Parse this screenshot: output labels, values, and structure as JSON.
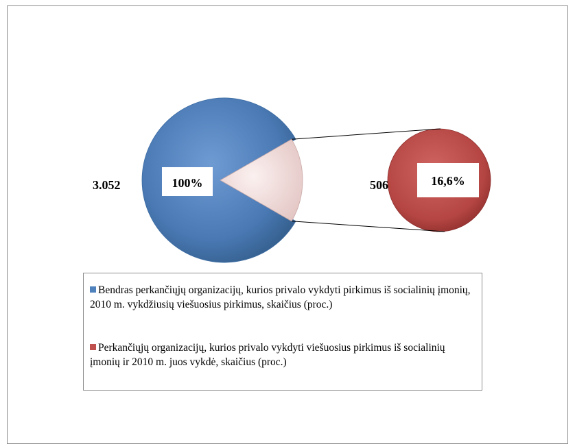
{
  "chart_data": {
    "type": "pie",
    "subtype": "pie-of-pie",
    "main_pie": {
      "slices": [
        {
          "label": "Bendras perkančiųjų organizacijų, kurios privalo vykdyti pirkimus iš socialinių įmonių, 2010 m. vykdžiusių viešuosius pirkimus, skaičius (proc.)",
          "value": 83.4,
          "color": "#4f81bd"
        },
        {
          "label": "Perkančiųjų organizacijų, kurios privalo vykdyti viešuosius pirkimus iš socialinių įmonių ir 2010 m. juos vykdė, skaičius (proc.)",
          "value": 16.6,
          "color": "#f2dcdb",
          "exploded_to_secondary": true
        }
      ],
      "value_label": "3.052",
      "percent_label": "100%"
    },
    "secondary_pie": {
      "value_label": "506",
      "percent_label": "16,6%",
      "color": "#c0504d"
    },
    "legend_position": "bottom"
  },
  "legend": {
    "items": [
      {
        "color": "#4f81bd",
        "text": "Bendras perkančiųjų organizacijų, kurios privalo vykdyti pirkimus iš socialinių įmonių, 2010 m. vykdžiusių viešuosius pirkimus, skaičius (proc.)"
      },
      {
        "color": "#c0504d",
        "text": "Perkančiųjų organizacijų, kurios privalo vykdyti viešuosius pirkimus iš socialinių įmonių ir 2010 m. juos vykdė, skaičius (proc.)"
      }
    ]
  }
}
